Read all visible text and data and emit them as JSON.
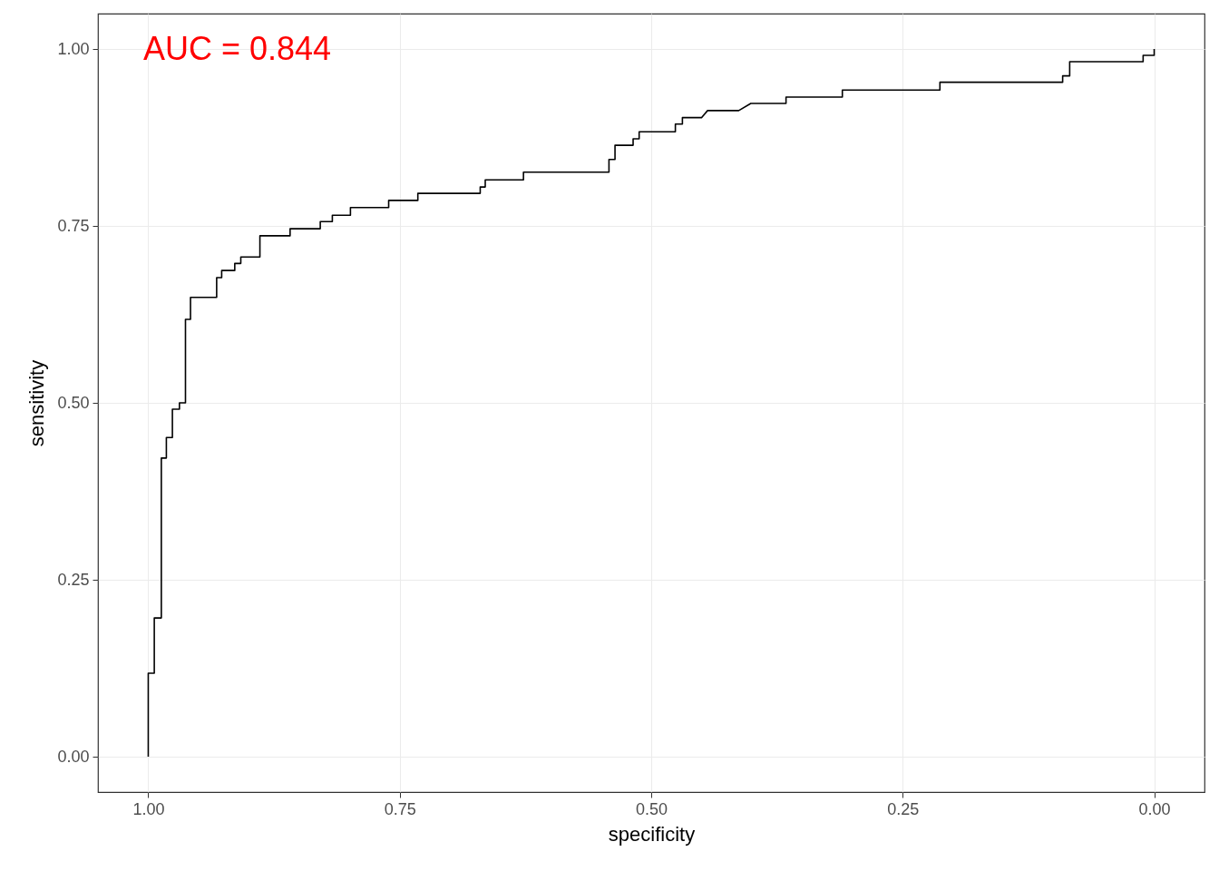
{
  "chart_data": {
    "type": "line",
    "xlabel": "specificity",
    "ylabel": "sensitivity",
    "annotations": [
      "AUC =  0.844"
    ],
    "xlim": [
      1.05,
      -0.05
    ],
    "ylim": [
      -0.05,
      1.05
    ],
    "xticks": [
      {
        "value": 1,
        "label": "1.00"
      },
      0.75,
      {
        "value": 0.5,
        "label": "0.50"
      },
      0.25,
      {
        "value": 0,
        "label": "0.00"
      }
    ],
    "yticks": [
      {
        "value": 0,
        "label": "0.00"
      },
      0.25,
      {
        "value": 0.5,
        "label": "0.50"
      },
      0.75,
      {
        "value": 1,
        "label": "1.00"
      }
    ],
    "grid": true,
    "marker": "none",
    "line_style": "solid",
    "series": [
      {
        "color": "#000000",
        "x": [
          1.0,
          1.0,
          0.994,
          0.994,
          0.987,
          0.987,
          0.982,
          0.982,
          0.976,
          0.976,
          0.969,
          0.969,
          0.963,
          0.963,
          0.958,
          0.958,
          0.932,
          0.932,
          0.927,
          0.927,
          0.914,
          0.914,
          0.908,
          0.908,
          0.889,
          0.889,
          0.859,
          0.859,
          0.829,
          0.829,
          0.817,
          0.817,
          0.799,
          0.799,
          0.761,
          0.761,
          0.732,
          0.732,
          0.67,
          0.67,
          0.665,
          0.665,
          0.627,
          0.627,
          0.542,
          0.542,
          0.536,
          0.536,
          0.518,
          0.518,
          0.512,
          0.512,
          0.476,
          0.476,
          0.469,
          0.469,
          0.45,
          0.444,
          0.413,
          0.401,
          0.366,
          0.366,
          0.31,
          0.31,
          0.213,
          0.213,
          0.091,
          0.091,
          0.084,
          0.084,
          0.011,
          0.011,
          0.0,
          0.0
        ],
        "values": [
          0.0,
          0.118,
          0.118,
          0.196,
          0.196,
          0.422,
          0.422,
          0.451,
          0.451,
          0.491,
          0.491,
          0.5,
          0.5,
          0.618,
          0.618,
          0.649,
          0.649,
          0.677,
          0.677,
          0.687,
          0.687,
          0.697,
          0.697,
          0.706,
          0.706,
          0.736,
          0.736,
          0.746,
          0.746,
          0.756,
          0.756,
          0.765,
          0.765,
          0.776,
          0.776,
          0.786,
          0.786,
          0.796,
          0.796,
          0.805,
          0.805,
          0.815,
          0.815,
          0.826,
          0.826,
          0.844,
          0.844,
          0.864,
          0.864,
          0.873,
          0.873,
          0.883,
          0.883,
          0.894,
          0.894,
          0.903,
          0.903,
          0.913,
          0.913,
          0.923,
          0.923,
          0.932,
          0.932,
          0.942,
          0.942,
          0.953,
          0.953,
          0.962,
          0.962,
          0.982,
          0.982,
          0.991,
          0.991,
          1.0
        ]
      }
    ]
  }
}
